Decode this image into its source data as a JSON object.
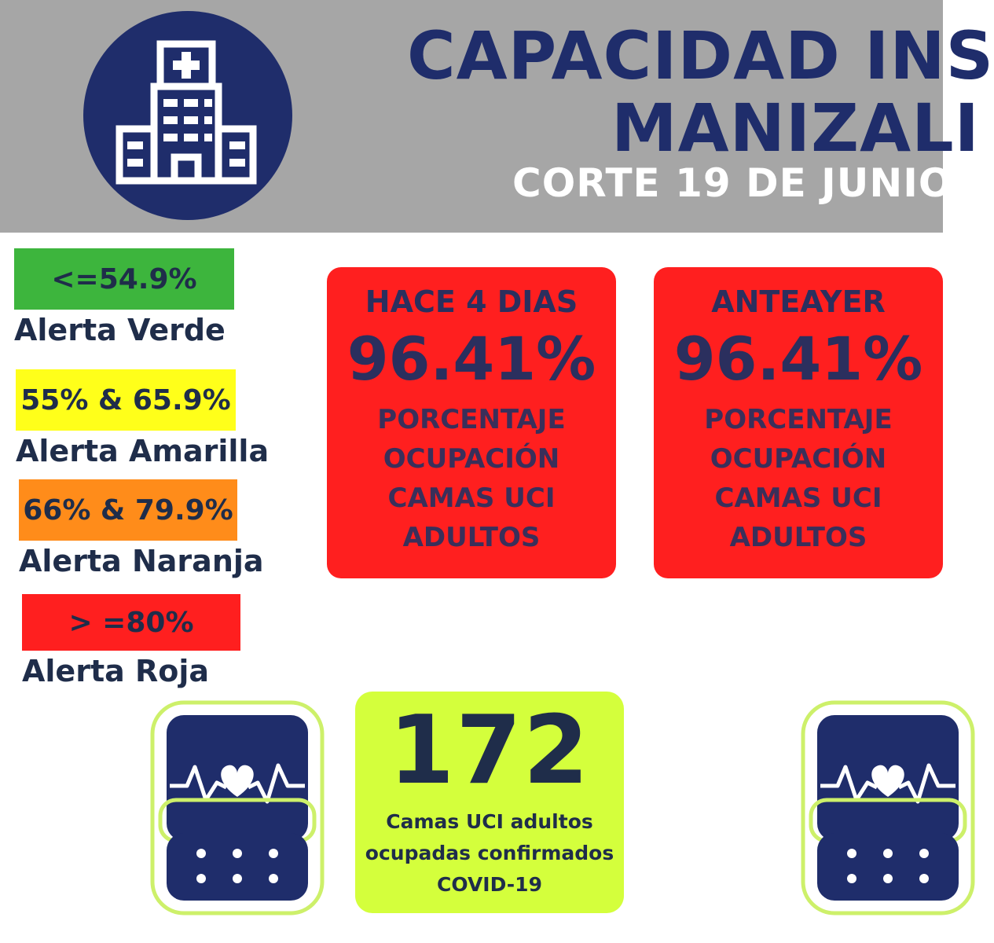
{
  "header": {
    "title_line1": "CAPACIDAD INS",
    "title_line2": "MANIZALI",
    "subtitle": "CORTE 19 DE JUNIO",
    "logo_icon": "hospital-icon"
  },
  "legend": [
    {
      "range": "<=54.9%",
      "label": "Alerta Verde",
      "color": "#3db53d"
    },
    {
      "range": "55% & 65.9%",
      "label": "Alerta Amarilla",
      "color": "#ffff1a"
    },
    {
      "range": "66% & 79.9%",
      "label": "Alerta Naranja",
      "color": "#ff8c1a"
    },
    {
      "range": "> =80%",
      "label": "Alerta Roja",
      "color": "#ff1f1f"
    }
  ],
  "cards": [
    {
      "when": "HACE 4 DIAS",
      "value": "96.41%",
      "desc": [
        "PORCENTAJE",
        "OCUPACIÓN",
        "CAMAS UCI",
        "ADULTOS"
      ]
    },
    {
      "when": "ANTEAYER",
      "value": "96.41%",
      "desc": [
        "PORCENTAJE",
        "OCUPACIÓN",
        "CAMAS UCI",
        "ADULTOS"
      ]
    }
  ],
  "beds": {
    "count": "172",
    "desc": [
      "Camas UCI adultos",
      "ocupadas confirmados",
      "COVID-19"
    ],
    "icon": "heart-monitor-icon"
  },
  "colors": {
    "navy": "#1f2d6b",
    "header_gray": "#a6a6a6",
    "lime": "#d4ff3c",
    "red": "#ff1f1f"
  }
}
